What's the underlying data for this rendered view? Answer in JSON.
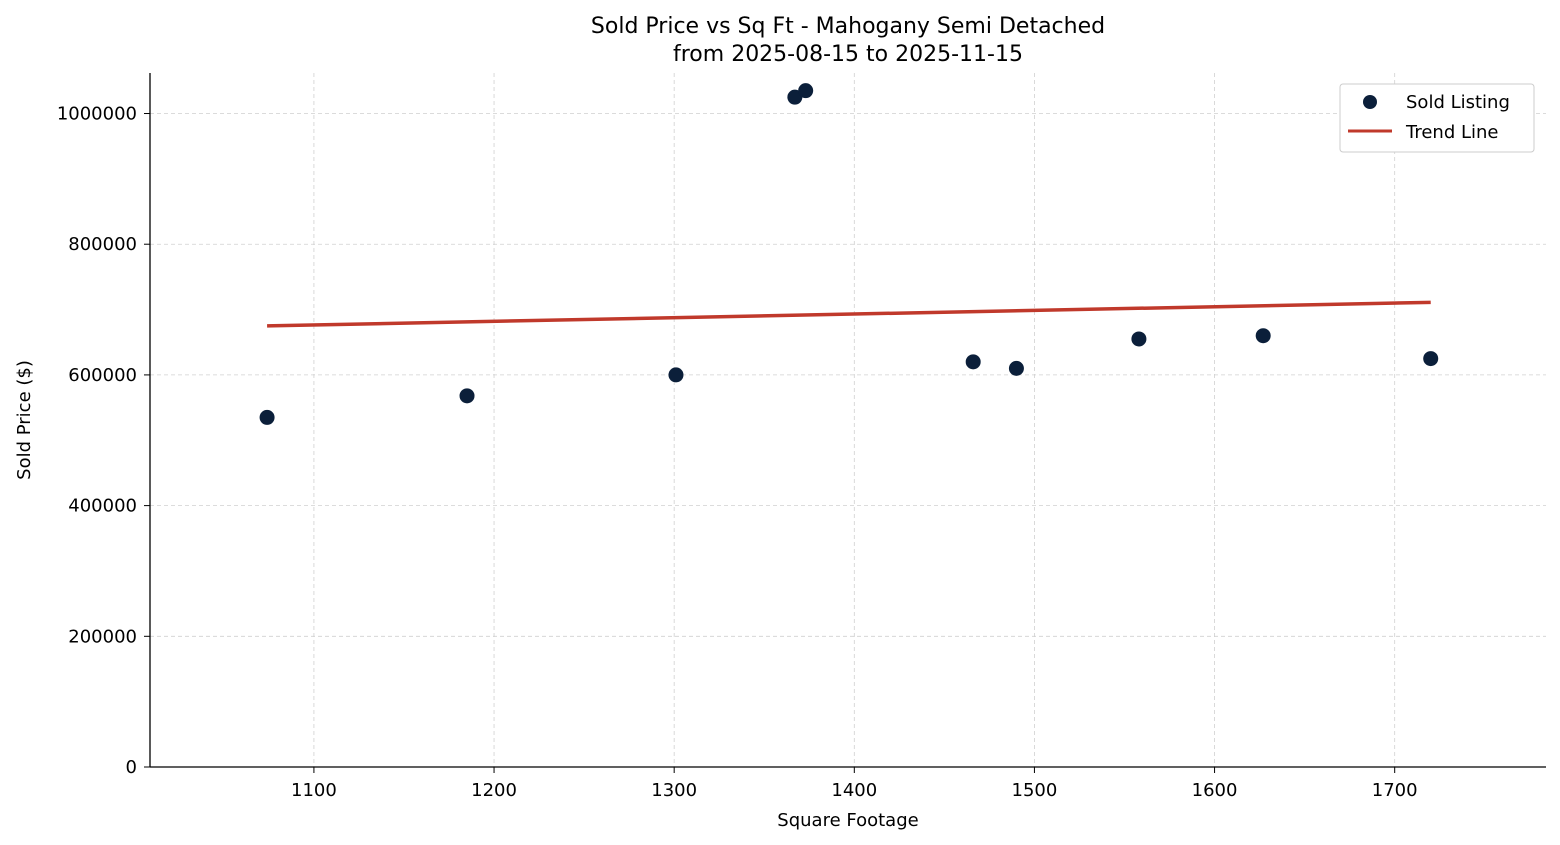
{
  "chart_data": {
    "type": "scatter",
    "title": "Sold Price vs Sq Ft - Mahogany Semi Detached",
    "subtitle": "from 2025-08-15 to 2025-11-15",
    "xlabel": "Square Footage",
    "ylabel": "Sold Price ($)",
    "xlim": [
      1009,
      1784
    ],
    "ylim": [
      0,
      1062000
    ],
    "xticks": [
      1100,
      1200,
      1300,
      1400,
      1500,
      1600,
      1700
    ],
    "yticks": [
      0,
      200000,
      400000,
      600000,
      800000,
      1000000
    ],
    "grid": true,
    "legend_position": "top-right",
    "series": [
      {
        "name": "Sold Listing",
        "type": "scatter",
        "color": "#0b1f3a",
        "points": [
          {
            "x": 1074,
            "y": 535000
          },
          {
            "x": 1185,
            "y": 568000
          },
          {
            "x": 1301,
            "y": 600000
          },
          {
            "x": 1367,
            "y": 1025000
          },
          {
            "x": 1373,
            "y": 1035000
          },
          {
            "x": 1466,
            "y": 620000
          },
          {
            "x": 1490,
            "y": 610000
          },
          {
            "x": 1558,
            "y": 655000
          },
          {
            "x": 1627,
            "y": 660000
          },
          {
            "x": 1720,
            "y": 625000
          }
        ]
      },
      {
        "name": "Trend Line",
        "type": "line",
        "color": "#c0392b",
        "points": [
          {
            "x": 1074,
            "y": 675000
          },
          {
            "x": 1720,
            "y": 711000
          }
        ]
      }
    ]
  }
}
